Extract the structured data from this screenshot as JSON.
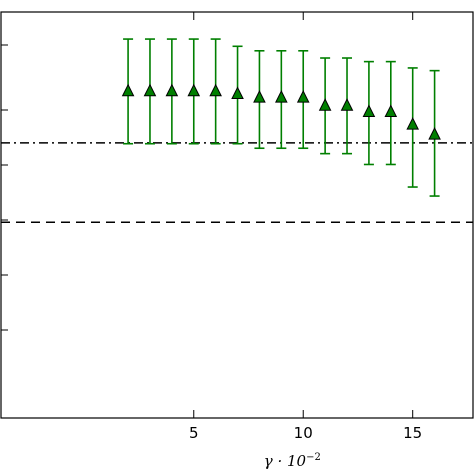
{
  "chart_data": {
    "type": "scatter",
    "title": "",
    "xlabel": {
      "base": "γ · 10",
      "exponent": "−2"
    },
    "ylabel": "",
    "xlim": [
      -3.85,
      17.8
    ],
    "ylim": [
      1.0,
      5.5
    ],
    "xticks": [
      5,
      10,
      15
    ],
    "xtick_labels": [
      "5",
      "10",
      "15"
    ],
    "grid": false,
    "legend": "none",
    "series": [
      {
        "marker": "triangle",
        "color": "#007f00",
        "x": [
          2,
          3,
          4,
          5,
          6,
          7,
          8,
          9,
          10,
          11,
          12,
          13,
          14,
          15,
          16
        ],
        "y": [
          4.62,
          4.62,
          4.62,
          4.62,
          4.62,
          4.59,
          4.55,
          4.55,
          4.55,
          4.46,
          4.46,
          4.39,
          4.39,
          4.25,
          4.14
        ],
        "yerr_low": [
          4.04,
          4.04,
          4.04,
          4.04,
          4.04,
          4.04,
          3.99,
          3.99,
          3.99,
          3.93,
          3.93,
          3.81,
          3.81,
          3.56,
          3.46
        ],
        "yerr_high": [
          5.2,
          5.2,
          5.2,
          5.2,
          5.2,
          5.12,
          5.07,
          5.07,
          5.07,
          4.99,
          4.99,
          4.95,
          4.95,
          4.88,
          4.85
        ]
      }
    ],
    "reference_lines": [
      {
        "style": "dashdot",
        "y": 4.05,
        "color": "#000000"
      },
      {
        "style": "dashed",
        "y": 3.17,
        "color": "#000000"
      }
    ]
  }
}
